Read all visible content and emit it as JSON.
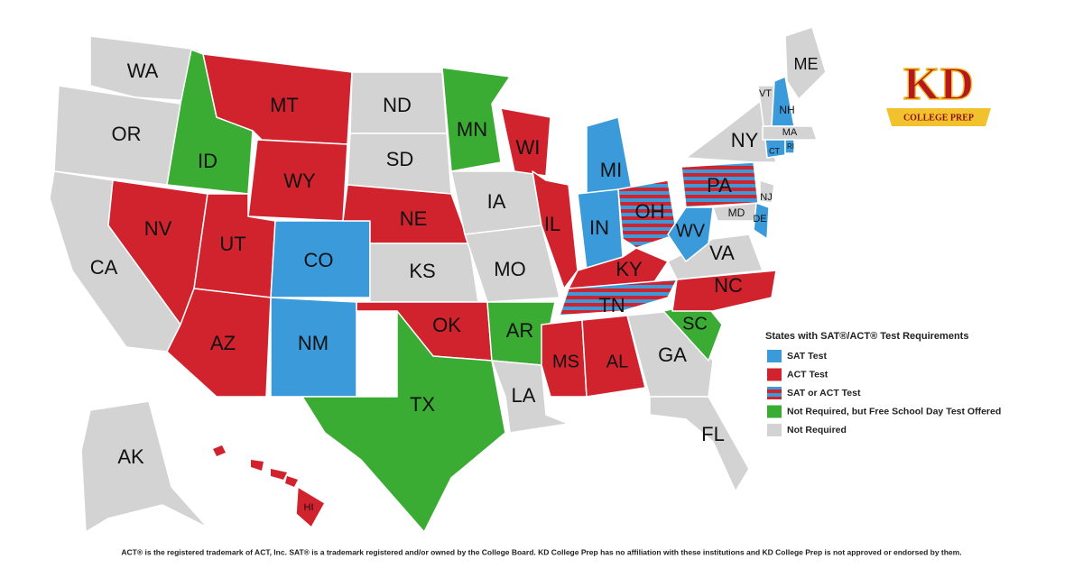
{
  "logo": {
    "mark": "KD",
    "text": "COLLEGE PREP"
  },
  "legend": {
    "title": "States with SAT®/ACT® Test Requirements",
    "items": [
      {
        "label": "SAT Test",
        "color": "#3b9ad9"
      },
      {
        "label": "ACT Test",
        "color": "#d0232e"
      },
      {
        "label": "SAT or ACT Test",
        "color": "#3b9ad9",
        "stripe_color": "#d0232e"
      },
      {
        "label": "Not Required, but Free School Day Test Offered",
        "color": "#3aac34"
      },
      {
        "label": "Not Required",
        "color": "#d3d3d3"
      }
    ]
  },
  "states": [
    {
      "label": "WA",
      "color": "#d3d3d3"
    },
    {
      "label": "OR",
      "color": "#d3d3d3"
    },
    {
      "label": "CA",
      "color": "#d3d3d3"
    },
    {
      "label": "ID",
      "color": "#3aac34"
    },
    {
      "label": "NV",
      "color": "#d0232e"
    },
    {
      "label": "MT",
      "color": "#d0232e"
    },
    {
      "label": "WY",
      "color": "#d0232e"
    },
    {
      "label": "UT",
      "color": "#d0232e"
    },
    {
      "label": "AZ",
      "color": "#d0232e"
    },
    {
      "label": "CO",
      "color": "#3b9ad9"
    },
    {
      "label": "NM",
      "color": "#3b9ad9"
    },
    {
      "label": "ND",
      "color": "#d3d3d3"
    },
    {
      "label": "SD",
      "color": "#d3d3d3"
    },
    {
      "label": "NE",
      "color": "#d0232e"
    },
    {
      "label": "KS",
      "color": "#d3d3d3"
    },
    {
      "label": "OK",
      "color": "#d0232e"
    },
    {
      "label": "TX",
      "color": "#3aac34"
    },
    {
      "label": "MN",
      "color": "#3aac34"
    },
    {
      "label": "IA",
      "color": "#d3d3d3"
    },
    {
      "label": "MO",
      "color": "#d3d3d3"
    },
    {
      "label": "AR",
      "color": "#3aac34"
    },
    {
      "label": "LA",
      "color": "#d3d3d3"
    },
    {
      "label": "WI",
      "color": "#d0232e"
    },
    {
      "label": "IL",
      "color": "#d0232e"
    },
    {
      "label": "MI",
      "color": "#3b9ad9"
    },
    {
      "label": "IN",
      "color": "#3b9ad9"
    },
    {
      "label": "OH",
      "color": "#3b9ad9",
      "stripe_color": "#d0232e"
    },
    {
      "label": "KY",
      "color": "#d0232e"
    },
    {
      "label": "TN",
      "color": "#3b9ad9",
      "stripe_color": "#d0232e"
    },
    {
      "label": "MS",
      "color": "#d0232e"
    },
    {
      "label": "AL",
      "color": "#d0232e"
    },
    {
      "label": "GA",
      "color": "#d3d3d3"
    },
    {
      "label": "FL",
      "color": "#d3d3d3"
    },
    {
      "label": "SC",
      "color": "#3aac34"
    },
    {
      "label": "NC",
      "color": "#d0232e"
    },
    {
      "label": "VA",
      "color": "#d3d3d3"
    },
    {
      "label": "WV",
      "color": "#3b9ad9"
    },
    {
      "label": "PA",
      "color": "#3b9ad9",
      "stripe_color": "#d0232e"
    },
    {
      "label": "NY",
      "color": "#d3d3d3"
    },
    {
      "label": "MD",
      "color": "#d3d3d3"
    },
    {
      "label": "DE",
      "color": "#3b9ad9"
    },
    {
      "label": "NJ",
      "color": "#d3d3d3"
    },
    {
      "label": "VT",
      "color": "#d3d3d3"
    },
    {
      "label": "NH",
      "color": "#3b9ad9"
    },
    {
      "label": "ME",
      "color": "#d3d3d3"
    },
    {
      "label": "MA",
      "color": "#d3d3d3"
    },
    {
      "label": "CT",
      "color": "#3b9ad9"
    },
    {
      "label": "RI",
      "color": "#3b9ad9"
    },
    {
      "label": "AK",
      "color": "#d3d3d3"
    },
    {
      "label": "HI",
      "color": "#d0232e"
    }
  ],
  "footnote": "ACT® is the registered trademark of ACT, Inc. SAT® is a trademark registered and/or owned by the College Board. KD College Prep has no affiliation with these institutions and KD College Prep is not approved or endorsed by them."
}
